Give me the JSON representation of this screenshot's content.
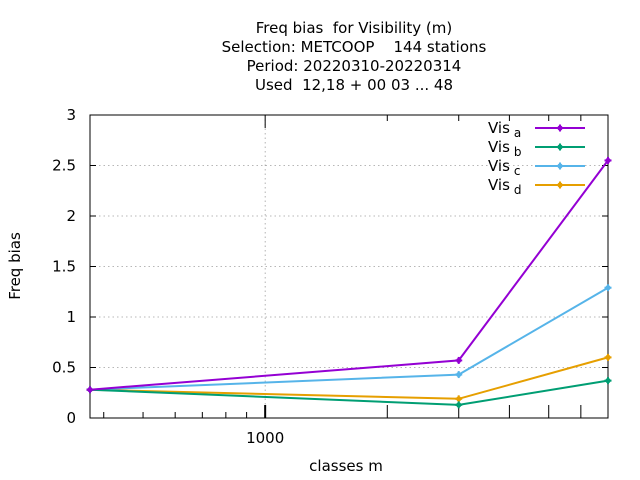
{
  "chart_data": {
    "type": "line",
    "title_lines": [
      "Freq bias  for Visibility (m)",
      "Selection: METCOOP    144 stations",
      "Period: 20220310-20220314",
      "Used  12,18 + 00 03 ... 48"
    ],
    "xlabel": "classes m",
    "ylabel": "Freq bias",
    "x_scale": "log",
    "xlim": [
      370,
      7000
    ],
    "ylim": [
      0,
      3
    ],
    "x_ticks": [
      {
        "value": 1000,
        "label": "1000"
      }
    ],
    "y_ticks": [
      {
        "value": 0,
        "label": "0"
      },
      {
        "value": 0.5,
        "label": "0.5"
      },
      {
        "value": 1,
        "label": "1"
      },
      {
        "value": 1.5,
        "label": "1.5"
      },
      {
        "value": 2,
        "label": "2"
      },
      {
        "value": 2.5,
        "label": "2.5"
      },
      {
        "value": 3,
        "label": "3"
      }
    ],
    "grid": true,
    "legend_position": "top-right",
    "x": [
      370,
      3000,
      7000
    ],
    "series": [
      {
        "name": "Vis",
        "sub": "a",
        "color": "#9400d3",
        "values": [
          0.28,
          0.57,
          2.55
        ]
      },
      {
        "name": "Vis",
        "sub": "b",
        "color": "#009e73",
        "values": [
          0.28,
          0.13,
          0.37
        ]
      },
      {
        "name": "Vis",
        "sub": "c",
        "color": "#56b4e9",
        "values": [
          0.28,
          0.43,
          1.29
        ]
      },
      {
        "name": "Vis",
        "sub": "d",
        "color": "#e69f00",
        "values": [
          0.28,
          0.19,
          0.6
        ]
      }
    ]
  }
}
